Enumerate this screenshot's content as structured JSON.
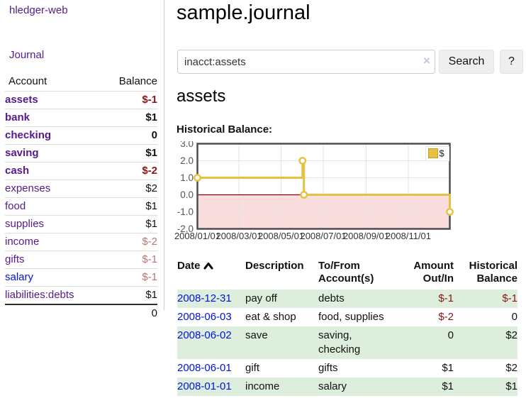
{
  "app": {
    "brand": "hledger-web",
    "nav_journal": "Journal"
  },
  "sidebar": {
    "header": {
      "account": "Account",
      "balance": "Balance"
    },
    "rows": [
      {
        "account": "assets",
        "balance": "$-1"
      },
      {
        "account": "bank",
        "balance": "$1"
      },
      {
        "account": "checking",
        "balance": "0"
      },
      {
        "account": "saving",
        "balance": "$1"
      },
      {
        "account": "cash",
        "balance": "$-2"
      },
      {
        "account": "expenses",
        "balance": "$2"
      },
      {
        "account": "food",
        "balance": "$1"
      },
      {
        "account": "supplies",
        "balance": "$1"
      },
      {
        "account": "income",
        "balance": "$-2"
      },
      {
        "account": "gifts",
        "balance": "$-1"
      },
      {
        "account": "salary",
        "balance": "$-1"
      },
      {
        "account": "liabilities:debts",
        "balance": "$1"
      }
    ],
    "total": "0"
  },
  "main": {
    "title": "sample.journal",
    "search": {
      "value": "inacct:assets",
      "clear_icon": "×",
      "button": "Search",
      "help_button": "?"
    },
    "account_heading": "assets",
    "chart_label": "Historical Balance:"
  },
  "chart_data": {
    "type": "line",
    "step": true,
    "title": "Historical Balance:",
    "series": [
      {
        "name": "$",
        "color": "#e8c041",
        "points": [
          [
            "2008-01-01",
            1
          ],
          [
            "2008-06-01",
            2
          ],
          [
            "2008-06-03",
            0
          ],
          [
            "2008-12-31",
            -1
          ]
        ]
      }
    ],
    "x_range": [
      "2008-01-01",
      "2008-12-31"
    ],
    "ylim": [
      -2,
      3
    ],
    "ytick_labels": [
      "3.0",
      "2.0",
      "1.0",
      "0.0",
      "-1.0",
      "-2.0"
    ],
    "ytick_values": [
      3,
      2,
      1,
      0,
      -1,
      -2
    ],
    "xticks": [
      "2008/01/01",
      "2008/03/01",
      "2008/05/01",
      "2008/07/01",
      "2008/09/01",
      "2008/11/01"
    ],
    "grid": true,
    "legend": {
      "label": "$",
      "position": "top-right"
    },
    "negative_region_fill": "#fadddd",
    "zero_line_color": "#8b0000"
  },
  "register": {
    "headers": {
      "date": "Date",
      "description": "Description",
      "tofrom": "To/From Account(s)",
      "amount": "Amount Out/In",
      "balance": "Historical Balance"
    },
    "rows": [
      {
        "date": "2008-12-31",
        "description": "pay off",
        "accounts": "debts",
        "amount": "$-1",
        "balance": "$-1"
      },
      {
        "date": "2008-06-03",
        "description": "eat & shop",
        "accounts": "food, supplies",
        "amount": "$-2",
        "balance": "0"
      },
      {
        "date": "2008-06-02",
        "description": "save",
        "accounts": "saving, checking",
        "amount": "0",
        "balance": "$2"
      },
      {
        "date": "2008-06-01",
        "description": "gift",
        "accounts": "gifts",
        "amount": "$1",
        "balance": "$2"
      },
      {
        "date": "2008-01-01",
        "description": "income",
        "accounts": "salary",
        "amount": "$1",
        "balance": "$1"
      }
    ]
  },
  "colors": {
    "link_purple": "#551a8b",
    "link_blue": "#0013dd",
    "negative_strong": "#8b1515",
    "negative_light": "#bb7575",
    "row_stripe_green": "#ddeedd",
    "chart_line_yellow": "#e8c041",
    "chart_negative_fill": "#fadddd",
    "chart_zero_line": "#8b0000"
  }
}
